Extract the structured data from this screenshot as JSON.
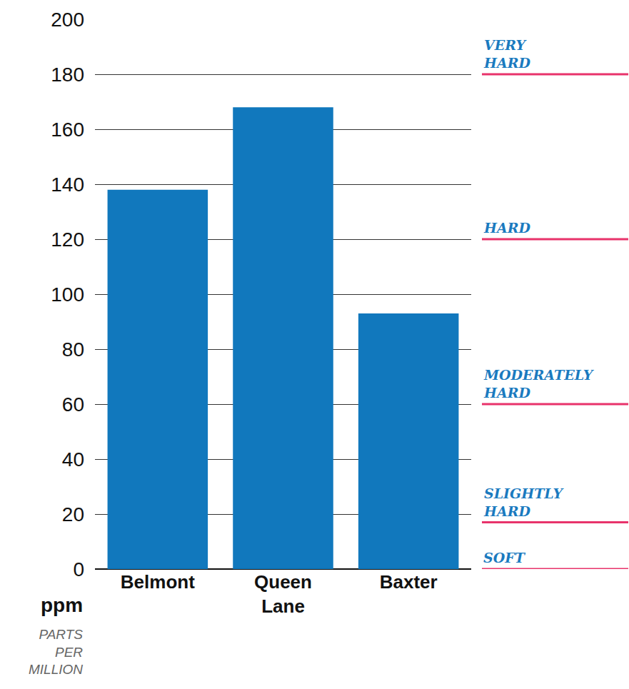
{
  "chart_data": {
    "type": "bar",
    "categories": [
      "Belmont",
      "Queen Lane",
      "Baxter"
    ],
    "values": [
      138,
      168,
      93
    ],
    "color": "#1178bd",
    "ylim": [
      0,
      200
    ],
    "yticks": [
      0,
      20,
      40,
      60,
      80,
      100,
      120,
      140,
      160,
      180,
      200
    ],
    "grid": true,
    "ylabel": "ppm",
    "ylabel_note": "PARTS PER MILLION",
    "levels": [
      {
        "label": "VERY HARD",
        "value": 180
      },
      {
        "label": "HARD",
        "value": 120
      },
      {
        "label": "MODERATELY HARD",
        "value": 60
      },
      {
        "label": "SLIGHTLY HARD",
        "value": 17
      },
      {
        "label": "SOFT",
        "value": 0
      }
    ]
  }
}
